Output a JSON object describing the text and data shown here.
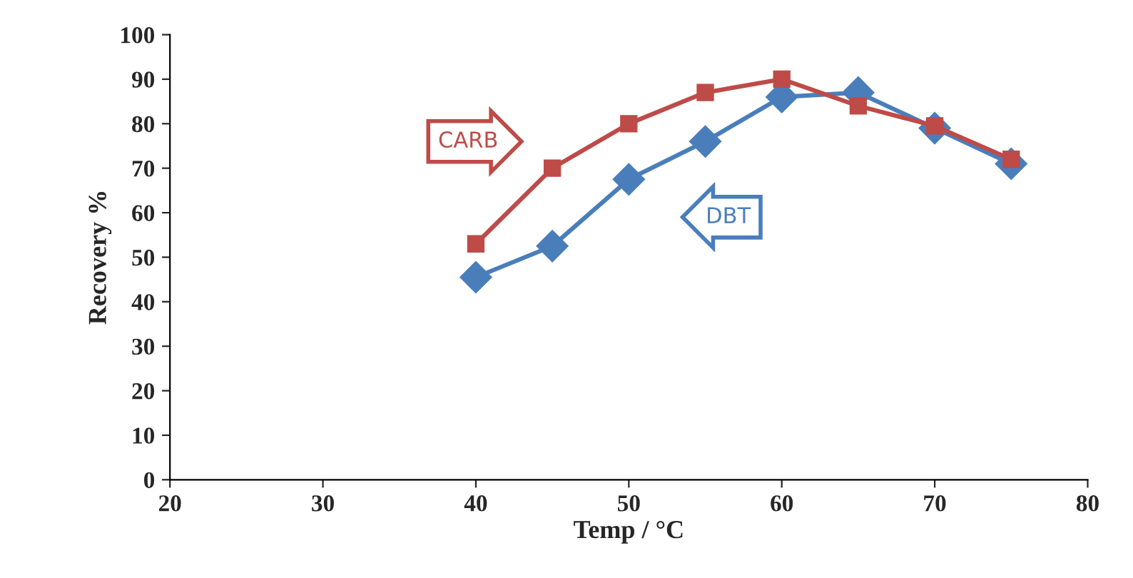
{
  "chart_data": {
    "type": "line",
    "xlabel": "Temp / °C",
    "ylabel": "Recovery %",
    "x": [
      40,
      45,
      50,
      55,
      60,
      65,
      70,
      75
    ],
    "series": [
      {
        "name": "DBT",
        "color": "#4a7ebb",
        "marker": "diamond",
        "values": [
          45.5,
          52.5,
          67.5,
          76,
          86,
          87,
          79,
          71
        ]
      },
      {
        "name": "CARB",
        "color": "#be4b48",
        "marker": "square",
        "values": [
          53,
          70,
          80,
          87,
          90,
          84,
          79.5,
          72
        ]
      }
    ],
    "xlim": [
      20,
      80
    ],
    "xticks": [
      20,
      30,
      40,
      50,
      60,
      70,
      80
    ],
    "ylim": [
      0,
      100
    ],
    "yticks": [
      0,
      10,
      20,
      30,
      40,
      50,
      60,
      70,
      80,
      90,
      100
    ],
    "grid": false,
    "legend": false,
    "line_style": "solid"
  }
}
